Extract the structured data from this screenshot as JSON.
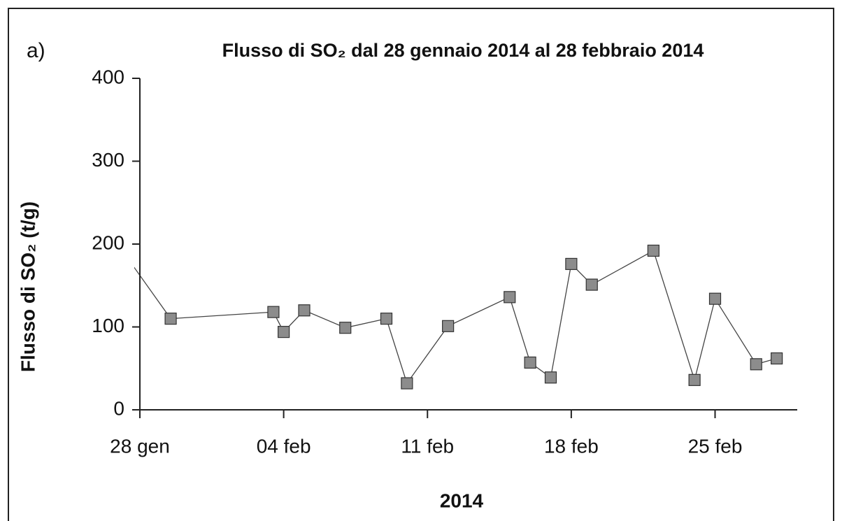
{
  "chart_data": {
    "type": "line",
    "panel_label": "a)",
    "title": "Flusso di SO₂ dal 28 gennaio 2014 al 28 febbraio 2014",
    "x_label": "2014",
    "y_label": "Flusso di SO₂  (t/g)",
    "x": [
      -1,
      1.5,
      6.5,
      7,
      8,
      10,
      12,
      13,
      15,
      18,
      19,
      20,
      21,
      22,
      25,
      27,
      28,
      30,
      31
    ],
    "series": [
      {
        "color": "#8c8c8c",
        "values": [
          197,
          110,
          118,
          94,
          120,
          99,
          110,
          32,
          101,
          136,
          57,
          39,
          176,
          151,
          192,
          36,
          134,
          55,
          62
        ]
      }
    ],
    "xlim": [
      0,
      32
    ],
    "xticks": [
      {
        "value": 0,
        "label": "28 gen"
      },
      {
        "value": 7,
        "label": "04 feb"
      },
      {
        "value": 14,
        "label": "11 feb"
      },
      {
        "value": 21,
        "label": "18 feb"
      },
      {
        "value": 28,
        "label": "25 feb"
      }
    ],
    "ylim": [
      0,
      400
    ],
    "yticks": [
      0,
      100,
      200,
      300,
      400
    ]
  }
}
